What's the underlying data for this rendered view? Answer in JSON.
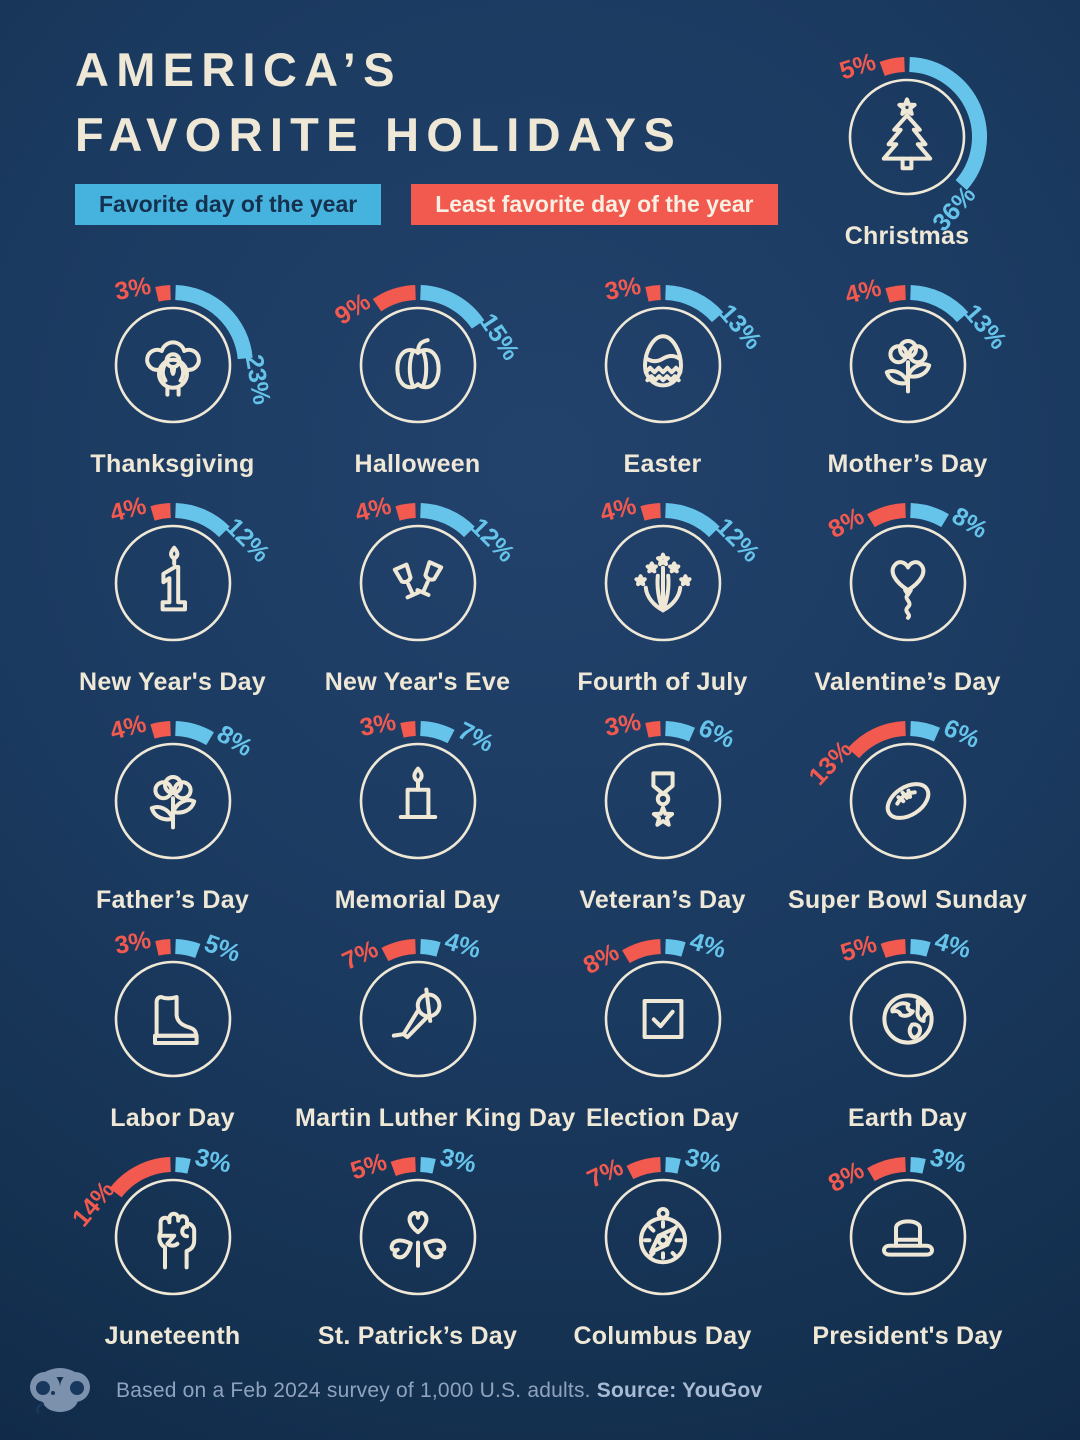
{
  "title": {
    "line1": "AMERICA’S",
    "line2": "FAVORITE HOLIDAYS"
  },
  "legend": {
    "favorite": "Favorite day of the year",
    "least_favorite": "Least favorite day of the year"
  },
  "footer": {
    "note": "Based on a Feb 2024 survey of 1,000 U.S. adults.",
    "source": "Source: YouGov",
    "logo": "voronoi-logo"
  },
  "colors": {
    "background": "#1A3A60",
    "background_edge": "#0D2342",
    "cream": "#EFE8D6",
    "favorite_blue": "#45B3DE",
    "arc_blue": "#66C4EB",
    "least_red": "#F2594F",
    "chip_text_navy": "#16304F",
    "footer_text": "#8FA3BE"
  },
  "chart_data": {
    "type": "donut-grid",
    "units": "percent of U.S. adults",
    "legend": [
      "Favorite day of the year",
      "Least favorite day of the year"
    ],
    "featured": {
      "name": "Christmas",
      "icon": "christmas-tree",
      "favorite_pct": 36,
      "least_favorite_pct": 5
    },
    "holidays": [
      {
        "name": "Thanksgiving",
        "icon": "turkey",
        "favorite_pct": 23,
        "least_favorite_pct": 3
      },
      {
        "name": "Halloween",
        "icon": "pumpkin",
        "favorite_pct": 15,
        "least_favorite_pct": 9
      },
      {
        "name": "Easter",
        "icon": "easter-egg",
        "favorite_pct": 13,
        "least_favorite_pct": 3
      },
      {
        "name": "Mother’s Day",
        "icon": "flower",
        "favorite_pct": 13,
        "least_favorite_pct": 4
      },
      {
        "name": "New Year's Day",
        "icon": "number-one-candle",
        "favorite_pct": 12,
        "least_favorite_pct": 4
      },
      {
        "name": "New Year's Eve",
        "icon": "champagne-glasses",
        "favorite_pct": 12,
        "least_favorite_pct": 4
      },
      {
        "name": "Fourth of July",
        "icon": "fireworks",
        "favorite_pct": 12,
        "least_favorite_pct": 4
      },
      {
        "name": "Valentine’s Day",
        "icon": "heart-balloon",
        "favorite_pct": 8,
        "least_favorite_pct": 8
      },
      {
        "name": "Father’s Day",
        "icon": "flower",
        "favorite_pct": 8,
        "least_favorite_pct": 4
      },
      {
        "name": "Memorial Day",
        "icon": "candle",
        "favorite_pct": 7,
        "least_favorite_pct": 3
      },
      {
        "name": "Veteran’s Day",
        "icon": "medal",
        "favorite_pct": 6,
        "least_favorite_pct": 3
      },
      {
        "name": "Super Bowl Sunday",
        "icon": "football",
        "favorite_pct": 6,
        "least_favorite_pct": 13
      },
      {
        "name": "Labor Day",
        "icon": "boot",
        "favorite_pct": 5,
        "least_favorite_pct": 3
      },
      {
        "name": "Martin Luther King Day",
        "icon": "microphone",
        "favorite_pct": 4,
        "least_favorite_pct": 7
      },
      {
        "name": "Election Day",
        "icon": "ballot-check",
        "favorite_pct": 4,
        "least_favorite_pct": 8
      },
      {
        "name": "Earth Day",
        "icon": "globe",
        "favorite_pct": 4,
        "least_favorite_pct": 5
      },
      {
        "name": "Juneteenth",
        "icon": "raised-fist",
        "favorite_pct": 3,
        "least_favorite_pct": 14
      },
      {
        "name": "St. Patrick’s Day",
        "icon": "shamrock",
        "favorite_pct": 3,
        "least_favorite_pct": 5
      },
      {
        "name": "Columbus Day",
        "icon": "compass",
        "favorite_pct": 3,
        "least_favorite_pct": 7
      },
      {
        "name": "President's Day",
        "icon": "top-hat",
        "favorite_pct": 3,
        "least_favorite_pct": 8
      }
    ]
  }
}
